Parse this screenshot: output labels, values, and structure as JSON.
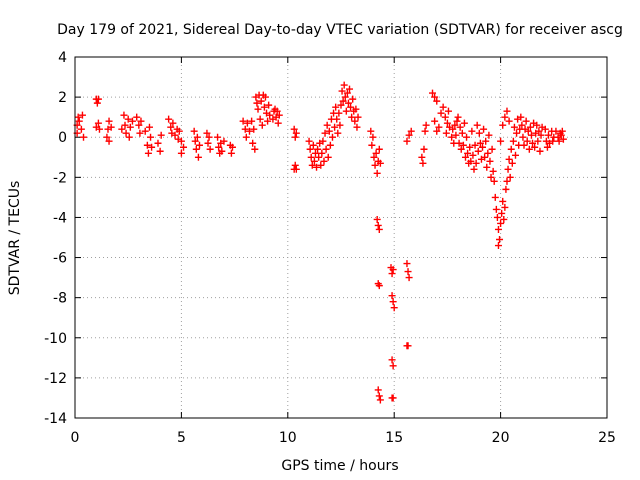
{
  "chart_data": {
    "type": "scatter",
    "title": "Day 179 of 2021, Sidereal Day-to-day VTEC variation (SDTVAR) for receiver ascg",
    "xlabel": "GPS time / hours",
    "ylabel": "SDTVAR / TECUs",
    "xlim": [
      0,
      25
    ],
    "ylim": [
      -14,
      4
    ],
    "xticks": [
      0,
      5,
      10,
      15,
      20,
      25
    ],
    "yticks": [
      -14,
      -12,
      -10,
      -8,
      -6,
      -4,
      -2,
      0,
      2,
      4
    ],
    "grid": true,
    "marker": "+",
    "marker_color": "#ff0000",
    "series": [
      {
        "name": "SDTVAR",
        "points": [
          [
            0.1,
            0.2
          ],
          [
            0.1,
            0.6
          ],
          [
            0.15,
            1.0
          ],
          [
            0.2,
            0.8
          ],
          [
            0.3,
            0.4
          ],
          [
            0.35,
            1.1
          ],
          [
            0.4,
            0.0
          ],
          [
            1.0,
            1.9
          ],
          [
            1.05,
            1.7
          ],
          [
            1.1,
            1.9
          ],
          [
            1.0,
            0.5
          ],
          [
            1.1,
            0.7
          ],
          [
            1.15,
            0.4
          ],
          [
            1.5,
            0.0
          ],
          [
            1.55,
            0.4
          ],
          [
            1.6,
            0.8
          ],
          [
            1.6,
            -0.2
          ],
          [
            1.7,
            0.5
          ],
          [
            2.2,
            0.4
          ],
          [
            2.3,
            1.1
          ],
          [
            2.35,
            0.6
          ],
          [
            2.4,
            0.2
          ],
          [
            2.5,
            0.9
          ],
          [
            2.55,
            0.0
          ],
          [
            2.6,
            0.5
          ],
          [
            2.7,
            0.8
          ],
          [
            2.9,
            1.0
          ],
          [
            3.0,
            0.6
          ],
          [
            3.05,
            0.2
          ],
          [
            3.1,
            0.8
          ],
          [
            3.3,
            0.3
          ],
          [
            3.4,
            -0.4
          ],
          [
            3.45,
            -0.8
          ],
          [
            3.5,
            0.5
          ],
          [
            3.55,
            0.0
          ],
          [
            3.6,
            -0.5
          ],
          [
            3.9,
            -0.3
          ],
          [
            4.0,
            -0.7
          ],
          [
            4.05,
            0.1
          ],
          [
            4.4,
            0.9
          ],
          [
            4.5,
            0.5
          ],
          [
            4.55,
            0.2
          ],
          [
            4.6,
            0.7
          ],
          [
            4.7,
            0.1
          ],
          [
            4.8,
            0.4
          ],
          [
            4.85,
            -0.1
          ],
          [
            4.9,
            0.3
          ],
          [
            5.0,
            -0.2
          ],
          [
            5.0,
            -0.8
          ],
          [
            5.1,
            -0.5
          ],
          [
            5.6,
            0.3
          ],
          [
            5.65,
            -0.2
          ],
          [
            5.7,
            -0.6
          ],
          [
            5.75,
            0.0
          ],
          [
            5.8,
            -1.0
          ],
          [
            5.85,
            -0.4
          ],
          [
            6.2,
            0.2
          ],
          [
            6.25,
            -0.3
          ],
          [
            6.3,
            0.0
          ],
          [
            6.35,
            -0.6
          ],
          [
            6.7,
            0.0
          ],
          [
            6.75,
            -0.5
          ],
          [
            6.8,
            -0.8
          ],
          [
            6.85,
            -0.3
          ],
          [
            6.9,
            -0.7
          ],
          [
            7.0,
            -0.2
          ],
          [
            7.3,
            -0.4
          ],
          [
            7.35,
            -0.8
          ],
          [
            7.4,
            -0.5
          ],
          [
            7.9,
            0.8
          ],
          [
            8.0,
            0.4
          ],
          [
            8.05,
            0.0
          ],
          [
            8.1,
            0.7
          ],
          [
            8.2,
            0.3
          ],
          [
            8.3,
            0.8
          ],
          [
            8.35,
            -0.3
          ],
          [
            8.4,
            0.4
          ],
          [
            8.45,
            -0.6
          ],
          [
            8.5,
            2.0
          ],
          [
            8.55,
            1.7
          ],
          [
            8.6,
            1.4
          ],
          [
            8.65,
            2.1
          ],
          [
            8.7,
            0.9
          ],
          [
            8.75,
            1.8
          ],
          [
            8.8,
            0.6
          ],
          [
            8.85,
            2.1
          ],
          [
            8.9,
            1.5
          ],
          [
            8.95,
            2.0
          ],
          [
            9.0,
            1.2
          ],
          [
            9.05,
            0.8
          ],
          [
            9.1,
            1.6
          ],
          [
            9.15,
            1.1
          ],
          [
            9.3,
            0.9
          ],
          [
            9.35,
            1.3
          ],
          [
            9.4,
            1.4
          ],
          [
            9.45,
            1.0
          ],
          [
            9.5,
            1.3
          ],
          [
            9.55,
            0.7
          ],
          [
            9.6,
            1.1
          ],
          [
            10.3,
            0.4
          ],
          [
            10.35,
            0.0
          ],
          [
            10.4,
            0.2
          ],
          [
            10.3,
            -1.6
          ],
          [
            10.35,
            -1.4
          ],
          [
            10.4,
            -1.6
          ],
          [
            11.0,
            -0.2
          ],
          [
            11.05,
            -0.6
          ],
          [
            11.1,
            -1.0
          ],
          [
            11.15,
            -1.4
          ],
          [
            11.2,
            -0.4
          ],
          [
            11.25,
            -1.2
          ],
          [
            11.3,
            -0.8
          ],
          [
            11.35,
            -1.5
          ],
          [
            11.4,
            -0.6
          ],
          [
            11.45,
            -1.0
          ],
          [
            11.5,
            -0.3
          ],
          [
            11.55,
            -1.4
          ],
          [
            11.6,
            -0.8
          ],
          [
            11.65,
            -0.2
          ],
          [
            11.7,
            -1.2
          ],
          [
            11.75,
            0.2
          ],
          [
            11.8,
            -0.6
          ],
          [
            11.85,
            0.6
          ],
          [
            11.9,
            -1.0
          ],
          [
            11.95,
            0.3
          ],
          [
            12.0,
            -0.4
          ],
          [
            12.05,
            0.9
          ],
          [
            12.1,
            0.0
          ],
          [
            12.15,
            1.2
          ],
          [
            12.2,
            0.5
          ],
          [
            12.25,
            1.5
          ],
          [
            12.3,
            0.9
          ],
          [
            12.35,
            0.2
          ],
          [
            12.4,
            1.2
          ],
          [
            12.45,
            0.6
          ],
          [
            12.5,
            1.6
          ],
          [
            12.55,
            2.3
          ],
          [
            12.6,
            1.8
          ],
          [
            12.65,
            2.6
          ],
          [
            12.7,
            2.0
          ],
          [
            12.75,
            1.3
          ],
          [
            12.8,
            2.2
          ],
          [
            12.85,
            1.7
          ],
          [
            12.9,
            2.4
          ],
          [
            12.95,
            1.5
          ],
          [
            13.0,
            1.0
          ],
          [
            13.05,
            1.9
          ],
          [
            13.1,
            1.3
          ],
          [
            13.15,
            0.8
          ],
          [
            13.2,
            1.4
          ],
          [
            13.25,
            0.5
          ],
          [
            13.3,
            1.0
          ],
          [
            13.9,
            0.3
          ],
          [
            13.95,
            -0.4
          ],
          [
            14.0,
            0.0
          ],
          [
            14.05,
            -1.0
          ],
          [
            14.1,
            -1.4
          ],
          [
            14.15,
            -0.8
          ],
          [
            14.2,
            -1.8
          ],
          [
            14.25,
            -1.2
          ],
          [
            14.3,
            -0.6
          ],
          [
            14.35,
            -1.3
          ],
          [
            14.2,
            -4.1
          ],
          [
            14.25,
            -4.4
          ],
          [
            14.3,
            -4.6
          ],
          [
            14.25,
            -7.3
          ],
          [
            14.3,
            -7.4
          ],
          [
            14.25,
            -12.6
          ],
          [
            14.3,
            -12.9
          ],
          [
            14.35,
            -13.1
          ],
          [
            14.85,
            -6.5
          ],
          [
            14.9,
            -6.8
          ],
          [
            14.95,
            -6.6
          ],
          [
            14.9,
            -7.9
          ],
          [
            14.95,
            -8.2
          ],
          [
            15.0,
            -8.5
          ],
          [
            14.9,
            -11.1
          ],
          [
            14.95,
            -11.4
          ],
          [
            14.9,
            -13.0
          ],
          [
            14.95,
            -13.0
          ],
          [
            15.6,
            -6.3
          ],
          [
            15.65,
            -6.7
          ],
          [
            15.7,
            -7.0
          ],
          [
            15.6,
            -10.4
          ],
          [
            15.65,
            -10.4
          ],
          [
            15.6,
            -0.2
          ],
          [
            15.7,
            0.1
          ],
          [
            15.8,
            0.3
          ],
          [
            16.3,
            -1.0
          ],
          [
            16.35,
            -1.3
          ],
          [
            16.4,
            -0.6
          ],
          [
            16.45,
            0.3
          ],
          [
            16.5,
            0.6
          ],
          [
            16.8,
            2.2
          ],
          [
            16.9,
            2.0
          ],
          [
            17.0,
            1.8
          ],
          [
            16.9,
            0.8
          ],
          [
            17.0,
            0.3
          ],
          [
            17.1,
            0.5
          ],
          [
            17.2,
            1.2
          ],
          [
            17.3,
            1.5
          ],
          [
            17.4,
            1.0
          ],
          [
            17.45,
            0.2
          ],
          [
            17.5,
            0.7
          ],
          [
            17.55,
            1.3
          ],
          [
            17.6,
            0.5
          ],
          [
            17.7,
            0.0
          ],
          [
            17.75,
            0.4
          ],
          [
            17.8,
            -0.3
          ],
          [
            17.85,
            0.6
          ],
          [
            17.9,
            0.1
          ],
          [
            17.95,
            0.8
          ],
          [
            18.0,
            1.0
          ],
          [
            18.05,
            -0.3
          ],
          [
            18.1,
            0.5
          ],
          [
            18.15,
            -0.6
          ],
          [
            18.2,
            0.2
          ],
          [
            18.25,
            -0.4
          ],
          [
            18.3,
            0.7
          ],
          [
            18.35,
            -1.0
          ],
          [
            18.4,
            0.0
          ],
          [
            18.45,
            -0.8
          ],
          [
            18.5,
            -1.3
          ],
          [
            18.55,
            -0.5
          ],
          [
            18.6,
            -1.2
          ],
          [
            18.65,
            0.3
          ],
          [
            18.7,
            -0.9
          ],
          [
            18.75,
            -1.6
          ],
          [
            18.8,
            -0.4
          ],
          [
            18.85,
            -1.3
          ],
          [
            18.9,
            0.6
          ],
          [
            18.95,
            -0.7
          ],
          [
            19.0,
            0.2
          ],
          [
            19.05,
            -0.3
          ],
          [
            19.1,
            -1.1
          ],
          [
            19.15,
            -0.5
          ],
          [
            19.2,
            0.4
          ],
          [
            19.25,
            -1.0
          ],
          [
            19.3,
            -0.2
          ],
          [
            19.35,
            -1.5
          ],
          [
            19.4,
            -0.8
          ],
          [
            19.45,
            0.1
          ],
          [
            19.5,
            -1.2
          ],
          [
            19.55,
            -2.0
          ],
          [
            19.6,
            -0.6
          ],
          [
            19.65,
            -1.7
          ],
          [
            19.7,
            -2.2
          ],
          [
            19.75,
            -3.0
          ],
          [
            19.8,
            -3.6
          ],
          [
            19.85,
            -4.0
          ],
          [
            19.9,
            -4.6
          ],
          [
            19.95,
            -5.1
          ],
          [
            19.9,
            -5.4
          ],
          [
            20.0,
            -4.3
          ],
          [
            20.05,
            -3.8
          ],
          [
            20.1,
            -3.2
          ],
          [
            20.15,
            -4.1
          ],
          [
            20.2,
            -3.5
          ],
          [
            20.25,
            -2.6
          ],
          [
            20.3,
            -2.2
          ],
          [
            20.35,
            -1.6
          ],
          [
            20.4,
            -1.1
          ],
          [
            20.45,
            -2.0
          ],
          [
            20.5,
            -0.6
          ],
          [
            20.55,
            -1.3
          ],
          [
            20.6,
            -0.2
          ],
          [
            20.65,
            0.5
          ],
          [
            20.7,
            -0.9
          ],
          [
            20.75,
            0.2
          ],
          [
            20.8,
            0.9
          ],
          [
            20.85,
            -0.4
          ],
          [
            20.9,
            0.4
          ],
          [
            20.95,
            1.0
          ],
          [
            20.0,
            -0.2
          ],
          [
            20.1,
            0.6
          ],
          [
            20.2,
            1.0
          ],
          [
            20.3,
            1.3
          ],
          [
            20.4,
            0.8
          ],
          [
            21.0,
            0.6
          ],
          [
            21.05,
            0.0
          ],
          [
            21.1,
            -0.4
          ],
          [
            21.15,
            0.4
          ],
          [
            21.2,
            0.8
          ],
          [
            21.25,
            -0.2
          ],
          [
            21.3,
            0.3
          ],
          [
            21.35,
            -0.6
          ],
          [
            21.4,
            0.5
          ],
          [
            21.45,
            0.1
          ],
          [
            21.5,
            -0.3
          ],
          [
            21.55,
            0.7
          ],
          [
            21.6,
            -0.5
          ],
          [
            21.65,
            0.2
          ],
          [
            21.7,
            0.6
          ],
          [
            21.75,
            -0.2
          ],
          [
            21.8,
            0.3
          ],
          [
            21.85,
            -0.7
          ],
          [
            21.9,
            0.1
          ],
          [
            21.95,
            0.5
          ],
          [
            22.1,
            0.4
          ],
          [
            22.15,
            -0.2
          ],
          [
            22.2,
            -0.5
          ],
          [
            22.25,
            0.1
          ],
          [
            22.3,
            -0.3
          ],
          [
            22.4,
            0.3
          ],
          [
            22.45,
            -0.2
          ],
          [
            22.5,
            0.0
          ],
          [
            22.6,
            0.3
          ],
          [
            22.7,
            0.0
          ],
          [
            22.75,
            -0.2
          ],
          [
            22.8,
            0.2
          ],
          [
            22.85,
            0.1
          ],
          [
            22.9,
            0.3
          ],
          [
            22.95,
            -0.1
          ]
        ]
      }
    ]
  }
}
